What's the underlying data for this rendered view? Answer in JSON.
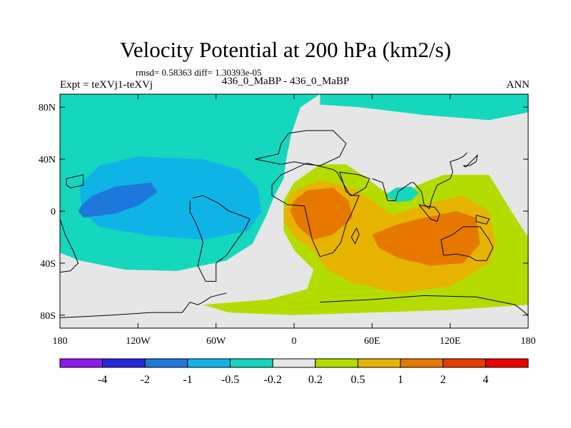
{
  "header": {
    "title": "Velocity Potential at 200 hPa (km2/s)",
    "stats": "rmsd= 0.58363 diff= 1.30393e-05",
    "case_label": "Expt = teXVj1-teXVj",
    "subtitle": "436_0_MaBP - 436_0_MaBP",
    "season": "ANN"
  },
  "chart_data": {
    "type": "heatmap",
    "title": "Velocity Potential at 200 hPa (km2/s)",
    "units": "km2/s",
    "projection": "cylindrical equidistant",
    "xlim": [
      -180,
      180
    ],
    "ylim": [
      -90,
      90
    ],
    "x_ticks": [
      {
        "value": -180,
        "label": "180"
      },
      {
        "value": -120,
        "label": "120W"
      },
      {
        "value": -60,
        "label": "60W"
      },
      {
        "value": 0,
        "label": "0"
      },
      {
        "value": 60,
        "label": "60E"
      },
      {
        "value": 120,
        "label": "120E"
      },
      {
        "value": 180,
        "label": "180"
      }
    ],
    "y_ticks": [
      {
        "value": 80,
        "label": "80N"
      },
      {
        "value": 40,
        "label": "40N"
      },
      {
        "value": 0,
        "label": "0"
      },
      {
        "value": -40,
        "label": "40S"
      },
      {
        "value": -80,
        "label": "80S"
      }
    ],
    "colorbar": {
      "boundaries": [
        "-4",
        "-2",
        "-1",
        "-0.5",
        "-0.2",
        "0.2",
        "0.5",
        "1",
        "2",
        "4"
      ],
      "colors": [
        "#8c1aeb",
        "#2828de",
        "#1e78dc",
        "#0fb4e6",
        "#14d7be",
        "#e6e6e6",
        "#b4dc00",
        "#e6b400",
        "#e67800",
        "#e63c00",
        "#eb0000"
      ]
    },
    "regions": [
      {
        "name": "background-near-zero",
        "level": "-0.2 to 0.2",
        "color": "#e6e6e6",
        "points": [
          [
            -180,
            90
          ],
          [
            180,
            90
          ],
          [
            180,
            -90
          ],
          [
            -180,
            -90
          ]
        ]
      },
      {
        "name": "north-cyan-band",
        "level": "-0.5 to -0.2",
        "color": "#14d7be",
        "points": [
          [
            -180,
            90
          ],
          [
            20,
            90
          ],
          [
            5,
            80
          ],
          [
            -2,
            60
          ],
          [
            -6,
            40
          ],
          [
            -8,
            25
          ],
          [
            -15,
            12
          ],
          [
            -22,
            -5
          ],
          [
            -32,
            -25
          ],
          [
            -52,
            -38
          ],
          [
            -90,
            -46
          ],
          [
            -130,
            -45
          ],
          [
            -165,
            -38
          ],
          [
            -180,
            -32
          ]
        ]
      },
      {
        "name": "arctic-cyan-strip",
        "level": "-0.5 to -0.2",
        "color": "#14d7be",
        "points": [
          [
            20,
            90
          ],
          [
            180,
            90
          ],
          [
            180,
            76
          ],
          [
            150,
            70
          ],
          [
            100,
            74
          ],
          [
            50,
            80
          ],
          [
            20,
            82
          ]
        ]
      },
      {
        "name": "west-pacific-blue-low",
        "level": "-1 to -0.5",
        "color": "#0fb4e6",
        "points": [
          [
            -165,
            20
          ],
          [
            -150,
            35
          ],
          [
            -120,
            42
          ],
          [
            -70,
            40
          ],
          [
            -42,
            32
          ],
          [
            -28,
            18
          ],
          [
            -25,
            0
          ],
          [
            -35,
            -15
          ],
          [
            -70,
            -22
          ],
          [
            -110,
            -19
          ],
          [
            -150,
            -12
          ],
          [
            -163,
            0
          ]
        ]
      },
      {
        "name": "west-pacific-core",
        "level": "-2 to -1",
        "color": "#1e78dc",
        "points": [
          [
            -163,
            5
          ],
          [
            -155,
            12
          ],
          [
            -137,
            19
          ],
          [
            -110,
            22
          ],
          [
            -105,
            15
          ],
          [
            -118,
            5
          ],
          [
            -138,
            -2
          ],
          [
            -162,
            -5
          ],
          [
            -166,
            0
          ]
        ]
      },
      {
        "name": "east-positive-region",
        "level": "0.2 to 0.5",
        "color": "#b4dc00",
        "points": [
          [
            -8,
            8
          ],
          [
            0,
            22
          ],
          [
            20,
            36
          ],
          [
            40,
            36
          ],
          [
            55,
            26
          ],
          [
            68,
            16
          ],
          [
            80,
            10
          ],
          [
            95,
            20
          ],
          [
            115,
            28
          ],
          [
            150,
            28
          ],
          [
            167,
            0
          ],
          [
            180,
            -20
          ],
          [
            180,
            -72
          ],
          [
            120,
            -76
          ],
          [
            60,
            -78
          ],
          [
            0,
            -80
          ],
          [
            -50,
            -78
          ],
          [
            -70,
            -72
          ],
          [
            -20,
            -68
          ],
          [
            10,
            -60
          ],
          [
            15,
            -45
          ],
          [
            0,
            -30
          ],
          [
            -8,
            -15
          ]
        ]
      },
      {
        "name": "east-orange-high",
        "level": "0.5 to 1",
        "color": "#e6b400",
        "points": [
          [
            -8,
            0
          ],
          [
            -2,
            15
          ],
          [
            20,
            24
          ],
          [
            45,
            18
          ],
          [
            60,
            8
          ],
          [
            75,
            -3
          ],
          [
            100,
            5
          ],
          [
            130,
            12
          ],
          [
            150,
            0
          ],
          [
            155,
            -25
          ],
          [
            150,
            -40
          ],
          [
            120,
            -58
          ],
          [
            80,
            -63
          ],
          [
            45,
            -55
          ],
          [
            25,
            -45
          ],
          [
            15,
            -30
          ],
          [
            0,
            -20
          ],
          [
            -8,
            -8
          ]
        ]
      },
      {
        "name": "africa-core",
        "level": "1 to 2",
        "color": "#e67800",
        "points": [
          [
            0,
            8
          ],
          [
            10,
            16
          ],
          [
            30,
            18
          ],
          [
            42,
            8
          ],
          [
            45,
            -5
          ],
          [
            30,
            -18
          ],
          [
            15,
            -22
          ],
          [
            3,
            -12
          ],
          [
            -3,
            0
          ]
        ]
      },
      {
        "name": "indian-ocean-core",
        "level": "1 to 2",
        "color": "#e67800",
        "points": [
          [
            60,
            -18
          ],
          [
            80,
            -10
          ],
          [
            100,
            -5
          ],
          [
            125,
            0
          ],
          [
            140,
            -5
          ],
          [
            143,
            -25
          ],
          [
            130,
            -40
          ],
          [
            105,
            -42
          ],
          [
            80,
            -36
          ],
          [
            65,
            -28
          ]
        ]
      },
      {
        "name": "north-pacific-cyan-blob",
        "level": "-0.5 to -0.2",
        "color": "#14d7be",
        "points": [
          [
            70,
            12
          ],
          [
            78,
            18
          ],
          [
            90,
            19
          ],
          [
            96,
            14
          ],
          [
            90,
            8
          ],
          [
            78,
            7
          ]
        ]
      },
      {
        "name": "small-blue-spot",
        "level": "-1 to -0.5",
        "color": "#0fb4e6",
        "points": [
          [
            -63,
            17
          ],
          [
            -61,
            19
          ],
          [
            -59,
            17
          ],
          [
            -61,
            15
          ]
        ]
      }
    ],
    "coastlines": [
      [
        [
          -180,
          -6
        ],
        [
          -176,
          -18
        ],
        [
          -170,
          -30
        ],
        [
          -166,
          -40
        ],
        [
          -172,
          -46
        ],
        [
          -180,
          -47
        ]
      ],
      [
        [
          -175,
          20
        ],
        [
          -175,
          25
        ],
        [
          -162,
          28
        ],
        [
          -162,
          20
        ],
        [
          -172,
          18
        ],
        [
          -175,
          20
        ]
      ],
      [
        [
          -52,
          -63
        ],
        [
          -64,
          -66
        ],
        [
          -70,
          -70
        ],
        [
          -74,
          -72
        ],
        [
          -80,
          -70
        ],
        [
          -86,
          -78
        ],
        [
          -110,
          -78
        ],
        [
          -140,
          -80
        ],
        [
          -180,
          -82
        ]
      ],
      [
        [
          -80,
          8
        ],
        [
          -80,
          -1
        ],
        [
          -76,
          -8
        ],
        [
          -72,
          -18
        ],
        [
          -70,
          -24
        ],
        [
          -72,
          -33
        ],
        [
          -74,
          -42
        ],
        [
          -68,
          -54
        ],
        [
          -60,
          -54
        ],
        [
          -60,
          -40
        ],
        [
          -52,
          -34
        ],
        [
          -45,
          -24
        ],
        [
          -38,
          -14
        ],
        [
          -34,
          -6
        ],
        [
          -44,
          -2
        ],
        [
          -50,
          0
        ],
        [
          -58,
          6
        ],
        [
          -70,
          12
        ],
        [
          -78,
          10
        ]
      ],
      [
        [
          -30,
          40
        ],
        [
          -12,
          44
        ],
        [
          -10,
          52
        ],
        [
          -4,
          60
        ],
        [
          10,
          62
        ],
        [
          30,
          62
        ],
        [
          40,
          52
        ],
        [
          35,
          42
        ],
        [
          20,
          35
        ],
        [
          10,
          36
        ],
        [
          0,
          38
        ],
        [
          -10,
          36
        ],
        [
          -30,
          40
        ]
      ],
      [
        [
          -17,
          20
        ],
        [
          -10,
          28
        ],
        [
          10,
          37
        ],
        [
          30,
          32
        ],
        [
          33,
          30
        ],
        [
          43,
          12
        ],
        [
          50,
          12
        ],
        [
          45,
          0
        ],
        [
          40,
          -10
        ],
        [
          36,
          -24
        ],
        [
          30,
          -32
        ],
        [
          20,
          -35
        ],
        [
          14,
          -22
        ],
        [
          10,
          -5
        ],
        [
          8,
          4
        ],
        [
          -5,
          5
        ],
        [
          -17,
          12
        ],
        [
          -17,
          20
        ]
      ],
      [
        [
          35,
          30
        ],
        [
          40,
          15
        ],
        [
          45,
          12
        ],
        [
          55,
          18
        ],
        [
          58,
          25
        ],
        [
          50,
          28
        ],
        [
          35,
          30
        ]
      ],
      [
        [
          48,
          -13
        ],
        [
          50,
          -18
        ],
        [
          47,
          -25
        ],
        [
          44,
          -20
        ],
        [
          48,
          -13
        ]
      ],
      [
        [
          60,
          25
        ],
        [
          68,
          22
        ],
        [
          72,
          8
        ],
        [
          78,
          8
        ],
        [
          80,
          15
        ],
        [
          90,
          22
        ],
        [
          92,
          22
        ],
        [
          98,
          15
        ],
        [
          100,
          5
        ],
        [
          104,
          2
        ],
        [
          106,
          10
        ],
        [
          110,
          20
        ],
        [
          120,
          25
        ],
        [
          122,
          30
        ],
        [
          120,
          38
        ],
        [
          126,
          40
        ],
        [
          130,
          42
        ],
        [
          133,
          45
        ]
      ],
      [
        [
          113,
          -22
        ],
        [
          115,
          -34
        ],
        [
          125,
          -33
        ],
        [
          135,
          -35
        ],
        [
          140,
          -38
        ],
        [
          148,
          -38
        ],
        [
          153,
          -28
        ],
        [
          150,
          -22
        ],
        [
          143,
          -12
        ],
        [
          136,
          -12
        ],
        [
          130,
          -12
        ],
        [
          122,
          -18
        ],
        [
          113,
          -22
        ]
      ],
      [
        [
          96,
          5
        ],
        [
          105,
          -6
        ],
        [
          110,
          -8
        ],
        [
          112,
          -2
        ],
        [
          108,
          3
        ],
        [
          100,
          4
        ],
        [
          96,
          5
        ]
      ],
      [
        [
          140,
          -3
        ],
        [
          150,
          -6
        ],
        [
          148,
          -10
        ],
        [
          140,
          -8
        ],
        [
          140,
          -3
        ]
      ],
      [
        [
          20,
          -70
        ],
        [
          60,
          -68
        ],
        [
          100,
          -65
        ],
        [
          140,
          -66
        ],
        [
          170,
          -72
        ],
        [
          180,
          -80
        ]
      ],
      [
        [
          130,
          35
        ],
        [
          135,
          35
        ],
        [
          140,
          38
        ],
        [
          141,
          43
        ],
        [
          138,
          40
        ],
        [
          132,
          34
        ],
        [
          130,
          35
        ]
      ]
    ]
  }
}
